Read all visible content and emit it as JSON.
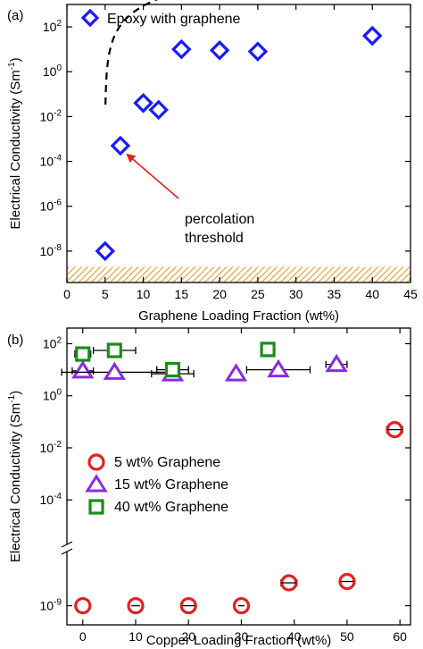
{
  "chart_data": [
    {
      "type": "scatter",
      "panel_label": "(a)",
      "xlabel": "Graphene Loading Fraction (wt%)",
      "ylabel": "Electrical Conductivity (Sm",
      "ylabel_sup": "-1",
      "ylabel_close": ")",
      "xlim": [
        0,
        45
      ],
      "ylim_log10": [
        -9.4,
        3
      ],
      "yscale": "log",
      "x_ticks": [
        "0",
        "5",
        "10",
        "15",
        "20",
        "25",
        "30",
        "35",
        "40",
        "45"
      ],
      "y_ticks": [
        {
          "exp": -8,
          "base": "10",
          "sup": "-8"
        },
        {
          "exp": -6,
          "base": "10",
          "sup": "-6"
        },
        {
          "exp": -4,
          "base": "10",
          "sup": "-4"
        },
        {
          "exp": -2,
          "base": "10",
          "sup": "-2"
        },
        {
          "exp": 0,
          "base": "10",
          "sup": "0"
        },
        {
          "exp": 2,
          "base": "10",
          "sup": "2"
        }
      ],
      "legend": "Epoxy with graphene",
      "legend_position": "top-left",
      "series": [
        {
          "name": "Epoxy with graphene",
          "marker": "diamond",
          "color": "#1a1aff",
          "x": [
            5,
            7,
            10,
            12,
            15,
            20,
            25,
            40
          ],
          "y": [
            1e-08,
            0.0005,
            0.04,
            0.02,
            10,
            9,
            8,
            40
          ]
        }
      ],
      "fit_curve": {
        "style": "dashed",
        "color": "#000000",
        "x_start": 5.05,
        "x_end": 40,
        "x_c": 5.0,
        "sigma0": 25,
        "t": 2.2
      },
      "annotation": {
        "lines": [
          "percolation",
          "threshold"
        ],
        "arrow_color": "#e62020",
        "points_to_x": 7,
        "points_to_y": 0.0005
      },
      "hatched_band": {
        "y_low": 4e-10,
        "y_high": 2e-09,
        "color": "#e8a040"
      },
      "grid": false
    },
    {
      "type": "scatter",
      "panel_label": "(b)",
      "xlabel": "Copper Loading Fraction (wt%)",
      "ylabel": "Electrical Conductivity (Sm",
      "ylabel_sup": "-1",
      "ylabel_close": ")",
      "xlim": [
        -3,
        62
      ],
      "yscale": "log (broken axis)",
      "x_ticks": [
        "0",
        "10",
        "20",
        "30",
        "40",
        "50",
        "60"
      ],
      "y_ticks": [
        {
          "exp": 2,
          "base": "10",
          "sup": "2"
        },
        {
          "exp": 0,
          "base": "10",
          "sup": "0"
        },
        {
          "exp": -2,
          "base": "10",
          "sup": "-2"
        },
        {
          "exp": -4,
          "base": "10",
          "sup": "-4"
        },
        {
          "exp": -9,
          "base": "10",
          "sup": "-9"
        }
      ],
      "legend_position": "lower-left",
      "series": [
        {
          "name": "5 wt% Graphene",
          "marker": "circle",
          "color": "#e62020",
          "x": [
            0,
            10,
            20,
            30,
            39,
            50,
            59
          ],
          "y": [
            1e-09,
            1e-09,
            1e-09,
            1e-09,
            3e-09,
            3.2e-09,
            0.05
          ],
          "xerr": [
            0,
            0.8,
            1.2,
            0.6,
            1.5,
            1.2,
            1.5
          ]
        },
        {
          "name": "15 wt% Graphene",
          "marker": "triangle",
          "color": "#8a2be2",
          "x": [
            0,
            6,
            17,
            29,
            37,
            48
          ],
          "y": [
            9,
            8,
            7,
            7,
            10,
            16
          ],
          "xerr": [
            2,
            10,
            4,
            0,
            6,
            2
          ]
        },
        {
          "name": "40 wt% Graphene",
          "marker": "square",
          "color": "#1a8c1a",
          "x": [
            0,
            6,
            17,
            35
          ],
          "y": [
            40,
            55,
            10,
            60
          ],
          "xerr": [
            1.5,
            4,
            3,
            0.5
          ]
        }
      ],
      "grid": false
    }
  ]
}
